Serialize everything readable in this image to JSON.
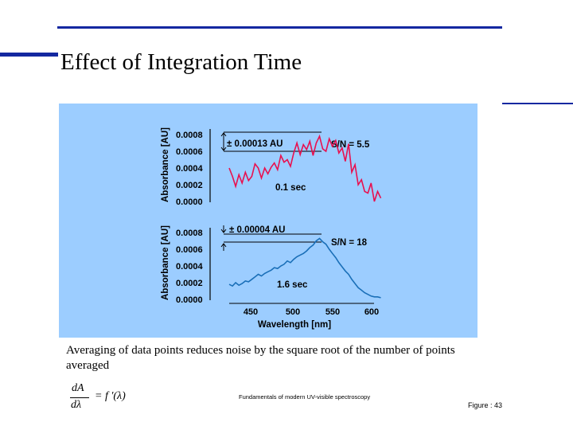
{
  "slide": {
    "title": "Effect of Integration Time",
    "caption": "Averaging of data points reduces noise by the square root of the number of points averaged",
    "formula": {
      "numerator": "dA",
      "denominator": "dλ",
      "rhs": "= f ′(λ)"
    },
    "source": "Fundamentals of modern UV-visible spectroscopy",
    "figure_label": "Figure : 43"
  },
  "colors": {
    "rule": "#1428a0",
    "panel": "#9ccdff",
    "trace_top": "#e8104f",
    "trace_bottom": "#1a6fb8"
  },
  "chart_data": [
    {
      "type": "line",
      "title": "",
      "xlabel": "",
      "ylabel": "Absorbance [AU]",
      "xlim": [
        420,
        610
      ],
      "ylim": [
        0.0,
        0.0008
      ],
      "yticks": [
        "0.0008",
        "0.0006",
        "0.0004",
        "0.0002",
        "0.0000"
      ],
      "annotations": {
        "noise": "± 0.00013 AU",
        "snr": "S/N = 5.5",
        "time": "0.1 sec"
      },
      "color": "#e8104f",
      "series": [
        {
          "x": [
            420,
            424,
            428,
            432,
            436,
            440,
            444,
            448,
            452,
            456,
            460,
            464,
            468,
            472,
            476,
            480,
            484,
            488,
            492,
            496,
            500,
            504,
            508,
            512,
            516,
            520,
            524,
            528,
            532,
            536,
            540,
            544,
            548,
            552,
            556,
            560,
            564,
            568,
            572,
            576,
            580,
            584,
            588,
            592,
            596,
            600,
            604,
            608
          ],
          "y": [
            0.0004,
            0.0003,
            0.00018,
            0.00032,
            0.00022,
            0.00035,
            0.00025,
            0.0003,
            0.00045,
            0.0004,
            0.00028,
            0.0004,
            0.00033,
            0.00041,
            0.00046,
            0.00038,
            0.00055,
            0.00047,
            0.0005,
            0.00042,
            0.00058,
            0.0007,
            0.00056,
            0.00068,
            0.00062,
            0.00072,
            0.00055,
            0.0007,
            0.00078,
            0.00063,
            0.0006,
            0.00075,
            0.00066,
            0.00073,
            0.00058,
            0.00064,
            0.00048,
            0.00069,
            0.00035,
            0.00044,
            0.0002,
            0.00026,
            0.00012,
            0.0001,
            0.00022,
            0.0,
            0.00012,
            4e-05
          ]
        }
      ]
    },
    {
      "type": "line",
      "title": "",
      "xlabel": "Wavelength [nm]",
      "ylabel": "Absorbance [AU]",
      "xlim": [
        420,
        610
      ],
      "ylim": [
        0.0,
        0.0008
      ],
      "xticks": [
        "450",
        "500",
        "550",
        "600"
      ],
      "yticks": [
        "0.0008",
        "0.0006",
        "0.0004",
        "0.0002",
        "0.0000"
      ],
      "annotations": {
        "noise": "± 0.00004 AU",
        "snr": "S/N = 18",
        "time": "1.6 sec"
      },
      "color": "#1a6fb8",
      "series": [
        {
          "x": [
            420,
            424,
            428,
            432,
            436,
            440,
            444,
            448,
            452,
            456,
            460,
            464,
            468,
            472,
            476,
            480,
            484,
            488,
            492,
            496,
            500,
            504,
            508,
            512,
            516,
            520,
            524,
            528,
            532,
            536,
            540,
            544,
            548,
            552,
            556,
            560,
            564,
            568,
            572,
            576,
            580,
            584,
            588,
            592,
            596,
            600,
            604,
            608
          ],
          "y": [
            0.00018,
            0.00016,
            0.0002,
            0.00017,
            0.00019,
            0.00022,
            0.00021,
            0.00024,
            0.00027,
            0.0003,
            0.00028,
            0.00031,
            0.00033,
            0.00035,
            0.00038,
            0.00037,
            0.0004,
            0.00042,
            0.00046,
            0.00044,
            0.00048,
            0.00051,
            0.00053,
            0.00055,
            0.00058,
            0.00062,
            0.00065,
            0.0007,
            0.00073,
            0.00069,
            0.00066,
            0.0006,
            0.00055,
            0.0005,
            0.00044,
            0.00039,
            0.00034,
            0.0003,
            0.00024,
            0.00019,
            0.00014,
            0.00011,
            8e-05,
            6e-05,
            4e-05,
            3e-05,
            3e-05,
            2e-05
          ]
        }
      ]
    }
  ]
}
